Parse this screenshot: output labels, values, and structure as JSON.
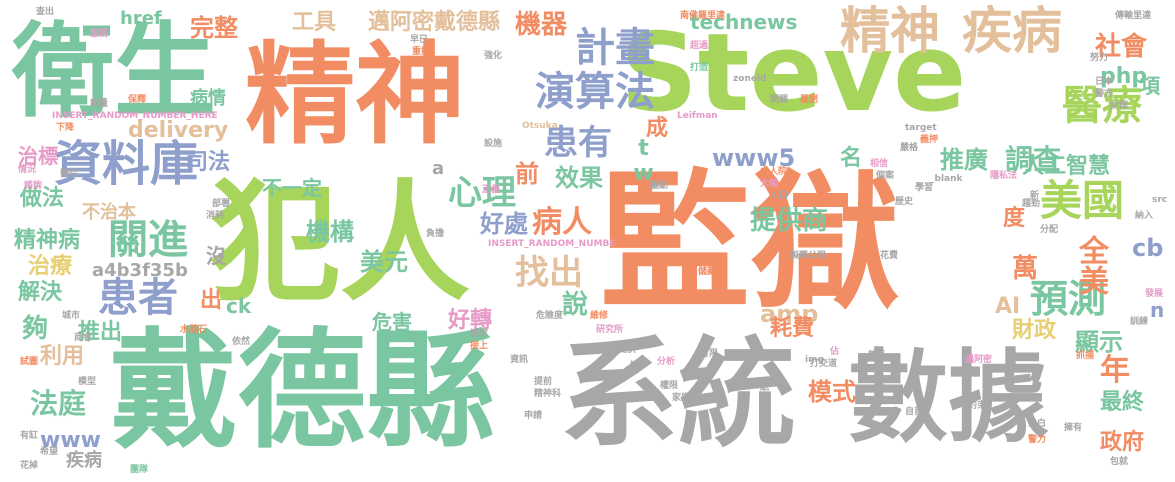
{
  "words": [
    {
      "text": "Steve",
      "color": "lime"
    },
    {
      "text": "監獄",
      "color": "orange"
    },
    {
      "text": "犯人",
      "color": "lime"
    },
    {
      "text": "戴德縣",
      "color": "green"
    },
    {
      "text": "系統",
      "color": "gray"
    },
    {
      "text": "數據",
      "color": "gray"
    },
    {
      "text": "精神",
      "color": "orange"
    },
    {
      "text": "衛生",
      "color": "green"
    },
    {
      "text": "精神",
      "color": "tan"
    },
    {
      "text": "疾病",
      "color": "tan"
    },
    {
      "text": "資料庫",
      "color": "blue"
    },
    {
      "text": "演算法",
      "color": "blue"
    },
    {
      "text": "計畫",
      "color": "blue"
    },
    {
      "text": "醫療",
      "color": "lime"
    },
    {
      "text": "美國",
      "color": "lime"
    },
    {
      "text": "患者",
      "color": "blue"
    },
    {
      "text": "關進",
      "color": "green"
    },
    {
      "text": "患有",
      "color": "blue"
    },
    {
      "text": "心理",
      "color": "green"
    },
    {
      "text": "找出",
      "color": "tan"
    },
    {
      "text": "病人",
      "color": "orange"
    },
    {
      "text": "預測",
      "color": "green"
    },
    {
      "text": "全美",
      "color": "orange"
    },
    {
      "text": "工具",
      "color": "tan"
    },
    {
      "text": "邁阿密戴德縣",
      "color": "tan"
    },
    {
      "text": "機器",
      "color": "orange"
    },
    {
      "text": "technews",
      "color": "green"
    },
    {
      "text": "完整",
      "color": "orange"
    },
    {
      "text": "href",
      "color": "green"
    },
    {
      "text": "社會",
      "color": "orange"
    },
    {
      "text": "調查",
      "color": "green"
    },
    {
      "text": "推廣",
      "color": "green"
    },
    {
      "text": "人工智慧",
      "color": "green"
    },
    {
      "text": "www5",
      "color": "blue"
    },
    {
      "text": "效果",
      "color": "green"
    },
    {
      "text": "提供商",
      "color": "green"
    },
    {
      "text": "機構",
      "color": "green"
    },
    {
      "text": "好處",
      "color": "blue"
    },
    {
      "text": "delivery",
      "color": "tan"
    },
    {
      "text": "司法",
      "color": "blue"
    },
    {
      "text": "治標",
      "color": "pink"
    },
    {
      "text": "不一定",
      "color": "green"
    },
    {
      "text": "做法",
      "color": "green"
    },
    {
      "text": "不治本",
      "color": "tan"
    },
    {
      "text": "精神病",
      "color": "green"
    },
    {
      "text": "治療",
      "color": "yellow"
    },
    {
      "text": "解決",
      "color": "green"
    },
    {
      "text": "a4b3f35b",
      "color": "gray"
    },
    {
      "text": "美元",
      "color": "green"
    },
    {
      "text": "amp",
      "color": "tan"
    },
    {
      "text": "說",
      "color": "green"
    },
    {
      "text": "夠",
      "color": "green"
    },
    {
      "text": "推出",
      "color": "green"
    },
    {
      "text": "利用",
      "color": "tan"
    },
    {
      "text": "法庭",
      "color": "green"
    },
    {
      "text": "www",
      "color": "blue"
    },
    {
      "text": "疾病",
      "color": "gray"
    },
    {
      "text": "好轉",
      "color": "pink"
    },
    {
      "text": "危害",
      "color": "green"
    },
    {
      "text": "模式",
      "color": "orange"
    },
    {
      "text": "最終",
      "color": "green"
    },
    {
      "text": "政府",
      "color": "orange"
    },
    {
      "text": "財政",
      "color": "yellow"
    },
    {
      "text": "顯示",
      "color": "green"
    },
    {
      "text": "耗費",
      "color": "orange"
    },
    {
      "text": "萬",
      "color": "orange"
    },
    {
      "text": "年",
      "color": "orange"
    },
    {
      "text": "AI",
      "color": "tan"
    },
    {
      "text": "cb",
      "color": "blue"
    },
    {
      "text": "php",
      "color": "green"
    },
    {
      "text": "tw",
      "color": "green"
    },
    {
      "text": "成",
      "color": "orange"
    },
    {
      "text": "前",
      "color": "orange"
    },
    {
      "text": "名",
      "color": "green"
    },
    {
      "text": "度",
      "color": "orange"
    },
    {
      "text": "項",
      "color": "green"
    },
    {
      "text": "病情",
      "color": "green"
    },
    {
      "text": "沒",
      "color": "gray"
    },
    {
      "text": "出",
      "color": "orange"
    },
    {
      "text": "ck",
      "color": "green"
    },
    {
      "text": "a",
      "color": "gray"
    },
    {
      "text": "n",
      "color": "blue"
    },
    {
      "text": "INSERT_RANDOM_NUMBER_HERE",
      "color": "pink"
    },
    {
      "text": "INSERT_RANDOM_NUMBE",
      "color": "pink"
    },
    {
      "text": "zoneid",
      "color": "gray"
    },
    {
      "text": "Leifman",
      "color": "pink"
    },
    {
      "text": "Otsuka",
      "color": "tan"
    },
    {
      "text": "target",
      "color": "gray"
    },
    {
      "text": "_blank",
      "color": "gray"
    },
    {
      "text": "img",
      "color": "gray"
    },
    {
      "text": "src",
      "color": "gray"
    },
    {
      "text": "查出",
      "color": "gray"
    },
    {
      "text": "服務",
      "color": "pink"
    },
    {
      "text": "早已",
      "color": "gray"
    },
    {
      "text": "重擔",
      "color": "orange"
    },
    {
      "text": "南佛羅里達",
      "color": "orange"
    },
    {
      "text": "超過",
      "color": "pink"
    },
    {
      "text": "打造",
      "color": "green"
    },
    {
      "text": "傳輸里達",
      "color": "gray"
    },
    {
      "text": "努力",
      "color": "gray"
    },
    {
      "text": "開關",
      "color": "gray"
    },
    {
      "text": "保釋",
      "color": "orange"
    },
    {
      "text": "數量",
      "color": "gray"
    },
    {
      "text": "下降",
      "color": "orange"
    },
    {
      "text": "情況",
      "color": "pink"
    },
    {
      "text": "諮詢",
      "color": "pink"
    },
    {
      "text": "醫院",
      "color": "gray"
    },
    {
      "text": "試圖",
      "color": "orange"
    },
    {
      "text": "模型",
      "color": "gray"
    },
    {
      "text": "有缸",
      "color": "gray"
    },
    {
      "text": "希望",
      "color": "gray"
    },
    {
      "text": "花掉",
      "color": "gray"
    },
    {
      "text": "團隊",
      "color": "green"
    },
    {
      "text": "依然",
      "color": "gray"
    },
    {
      "text": "水落石",
      "color": "orange"
    },
    {
      "text": "城市",
      "color": "gray"
    },
    {
      "text": "商會",
      "color": "gray"
    },
    {
      "text": "部署",
      "color": "gray"
    },
    {
      "text": "消耗",
      "color": "gray"
    },
    {
      "text": "驅動",
      "color": "gray"
    },
    {
      "text": "負擔",
      "color": "gray"
    },
    {
      "text": "正義",
      "color": "pink"
    },
    {
      "text": "請求",
      "color": "gray"
    },
    {
      "text": "接上",
      "color": "orange"
    },
    {
      "text": "危險度",
      "color": "gray"
    },
    {
      "text": "資訊",
      "color": "gray"
    },
    {
      "text": "提前",
      "color": "gray"
    },
    {
      "text": "精神科",
      "color": "gray"
    },
    {
      "text": "申請",
      "color": "gray"
    },
    {
      "text": "維修",
      "color": "orange"
    },
    {
      "text": "分析",
      "color": "pink"
    },
    {
      "text": "權限",
      "color": "gray"
    },
    {
      "text": "家庭",
      "color": "gray"
    },
    {
      "text": "提供",
      "color": "gray"
    },
    {
      "text": "紙",
      "color": "gray"
    },
    {
      "text": "有限",
      "color": "gray"
    },
    {
      "text": "接下",
      "color": "gray"
    },
    {
      "text": "儲藏室",
      "color": "orange"
    },
    {
      "text": "研究所",
      "color": "pink"
    },
    {
      "text": "製藥公司",
      "color": "gray"
    },
    {
      "text": "打交道",
      "color": "gray"
    },
    {
      "text": "佔",
      "color": "pink"
    },
    {
      "text": "體系",
      "color": "gray"
    },
    {
      "text": "花費",
      "color": "gray"
    },
    {
      "text": "大幅",
      "color": "pink"
    },
    {
      "text": "入口",
      "color": "gray"
    },
    {
      "text": "處人院",
      "color": "orange"
    },
    {
      "text": "相信",
      "color": "pink"
    },
    {
      "text": "個案",
      "color": "gray"
    },
    {
      "text": "嚴格",
      "color": "gray"
    },
    {
      "text": "學習",
      "color": "gray"
    },
    {
      "text": "義押",
      "color": "orange"
    },
    {
      "text": "歷史",
      "color": "gray"
    },
    {
      "text": "隱私法",
      "color": "pink"
    },
    {
      "text": "新",
      "color": "gray"
    },
    {
      "text": "趨勁",
      "color": "gray"
    },
    {
      "text": "分配",
      "color": "gray"
    },
    {
      "text": "納入",
      "color": "gray"
    },
    {
      "text": "發展",
      "color": "pink"
    },
    {
      "text": "訓練",
      "color": "gray"
    },
    {
      "text": "遇阿密",
      "color": "pink"
    },
    {
      "text": "抓捕",
      "color": "orange"
    },
    {
      "text": "約束",
      "color": "gray"
    },
    {
      "text": "自首",
      "color": "gray"
    },
    {
      "text": "擁有",
      "color": "gray"
    },
    {
      "text": "包就",
      "color": "gray"
    },
    {
      "text": "警力",
      "color": "orange"
    },
    {
      "text": "息白",
      "color": "gray"
    },
    {
      "text": "日本",
      "color": "gray"
    },
    {
      "text": "警方",
      "color": "gray"
    },
    {
      "text": "財理",
      "color": "gray"
    },
    {
      "text": "強化",
      "color": "gray"
    },
    {
      "text": "設施",
      "color": "gray"
    },
    {
      "text": "屬閉",
      "color": "orange"
    }
  ]
}
